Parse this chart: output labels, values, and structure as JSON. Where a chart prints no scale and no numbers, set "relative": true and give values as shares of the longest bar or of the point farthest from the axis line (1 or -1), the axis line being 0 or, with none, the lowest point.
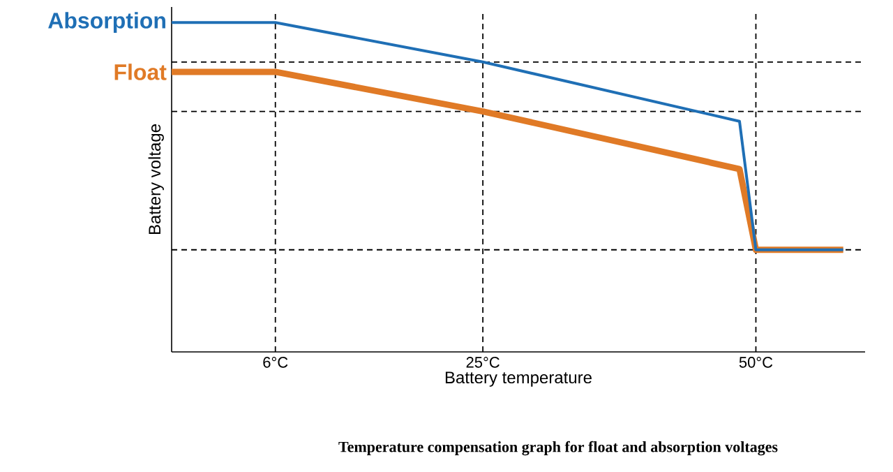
{
  "chart_data": {
    "type": "line",
    "relative": true,
    "xlabel": "Battery temperature",
    "ylabel": "Battery voltage",
    "xlim": [
      -3.5,
      60
    ],
    "xticks": [
      {
        "value": 6,
        "label": "6°C"
      },
      {
        "value": 25,
        "label": "25°C"
      },
      {
        "value": 50,
        "label": "50°C"
      }
    ],
    "series": [
      {
        "name": "Absorption",
        "color": "#1f6fb5",
        "x": [
          -3.5,
          6,
          25,
          48.5,
          50,
          58
        ],
        "values": [
          1,
          1,
          0.88,
          0.7,
          0.31,
          0.31
        ]
      },
      {
        "name": "Float",
        "color": "#e07a26",
        "x": [
          -3.5,
          6,
          25,
          48.5,
          50,
          58
        ],
        "values": [
          0.85,
          0.85,
          0.73,
          0.555,
          0.31,
          0.31
        ]
      }
    ],
    "ref_lines": [
      {
        "axis": "x",
        "value": 6,
        "line_style": "dashed",
        "color": "#000000"
      },
      {
        "axis": "x",
        "value": 25,
        "line_style": "dashed",
        "color": "#000000"
      },
      {
        "axis": "x",
        "value": 50,
        "line_style": "dashed",
        "color": "#000000"
      },
      {
        "axis": "y",
        "value": 0.88,
        "line_style": "dashed",
        "color": "#000000"
      },
      {
        "axis": "y",
        "value": 0.73,
        "line_style": "dashed",
        "color": "#000000"
      },
      {
        "axis": "y",
        "value": 0.31,
        "line_style": "dashed",
        "color": "#000000"
      }
    ],
    "grid": false,
    "legend": false,
    "marker": "none",
    "line_style": "solid",
    "annotations": [
      "Temperature compensation graph for float and absorption voltages"
    ]
  }
}
